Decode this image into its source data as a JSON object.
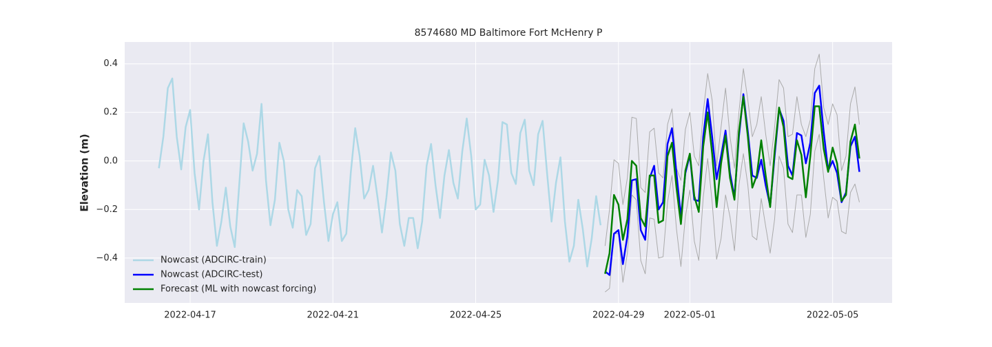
{
  "chart_data": {
    "type": "line",
    "title": "8574680 MD Baltimore Fort McHenry P",
    "y_label": "Elevation (m)",
    "x": [
      "2022-04-16T03:00",
      "2022-04-16T06:00",
      "2022-04-16T09:00",
      "2022-04-16T12:00",
      "2022-04-16T15:00",
      "2022-04-16T18:00",
      "2022-04-16T21:00",
      "2022-04-17T00:00",
      "2022-04-17T03:00",
      "2022-04-17T06:00",
      "2022-04-17T09:00",
      "2022-04-17T12:00",
      "2022-04-17T15:00",
      "2022-04-17T18:00",
      "2022-04-17T21:00",
      "2022-04-18T00:00",
      "2022-04-18T03:00",
      "2022-04-18T06:00",
      "2022-04-18T09:00",
      "2022-04-18T12:00",
      "2022-04-18T15:00",
      "2022-04-18T18:00",
      "2022-04-18T21:00",
      "2022-04-19T00:00",
      "2022-04-19T03:00",
      "2022-04-19T06:00",
      "2022-04-19T09:00",
      "2022-04-19T12:00",
      "2022-04-19T15:00",
      "2022-04-19T18:00",
      "2022-04-19T21:00",
      "2022-04-20T00:00",
      "2022-04-20T03:00",
      "2022-04-20T06:00",
      "2022-04-20T09:00",
      "2022-04-20T12:00",
      "2022-04-20T15:00",
      "2022-04-20T18:00",
      "2022-04-20T21:00",
      "2022-04-21T00:00",
      "2022-04-21T03:00",
      "2022-04-21T06:00",
      "2022-04-21T09:00",
      "2022-04-21T12:00",
      "2022-04-21T15:00",
      "2022-04-21T18:00",
      "2022-04-21T21:00",
      "2022-04-22T00:00",
      "2022-04-22T03:00",
      "2022-04-22T06:00",
      "2022-04-22T09:00",
      "2022-04-22T12:00",
      "2022-04-22T15:00",
      "2022-04-22T18:00",
      "2022-04-22T21:00",
      "2022-04-23T00:00",
      "2022-04-23T03:00",
      "2022-04-23T06:00",
      "2022-04-23T09:00",
      "2022-04-23T12:00",
      "2022-04-23T15:00",
      "2022-04-23T18:00",
      "2022-04-23T21:00",
      "2022-04-24T00:00",
      "2022-04-24T03:00",
      "2022-04-24T06:00",
      "2022-04-24T09:00",
      "2022-04-24T12:00",
      "2022-04-24T15:00",
      "2022-04-24T18:00",
      "2022-04-24T21:00",
      "2022-04-25T00:00",
      "2022-04-25T03:00",
      "2022-04-25T06:00",
      "2022-04-25T09:00",
      "2022-04-25T12:00",
      "2022-04-25T15:00",
      "2022-04-25T18:00",
      "2022-04-25T21:00",
      "2022-04-26T00:00",
      "2022-04-26T03:00",
      "2022-04-26T06:00",
      "2022-04-26T09:00",
      "2022-04-26T12:00",
      "2022-04-26T15:00",
      "2022-04-26T18:00",
      "2022-04-26T21:00",
      "2022-04-27T00:00",
      "2022-04-27T03:00",
      "2022-04-27T06:00",
      "2022-04-27T09:00",
      "2022-04-27T12:00",
      "2022-04-27T15:00",
      "2022-04-27T18:00",
      "2022-04-27T21:00",
      "2022-04-28T00:00",
      "2022-04-28T03:00",
      "2022-04-28T06:00",
      "2022-04-28T09:00",
      "2022-04-28T12:00",
      "2022-04-28T15:00",
      "2022-04-28T18:00",
      "2022-04-28T21:00",
      "2022-04-29T00:00",
      "2022-04-29T03:00",
      "2022-04-29T06:00",
      "2022-04-29T09:00",
      "2022-04-29T12:00",
      "2022-04-29T15:00",
      "2022-04-29T18:00",
      "2022-04-29T21:00",
      "2022-04-30T00:00",
      "2022-04-30T03:00",
      "2022-04-30T06:00",
      "2022-04-30T09:00",
      "2022-04-30T12:00",
      "2022-04-30T15:00",
      "2022-04-30T18:00",
      "2022-04-30T21:00",
      "2022-05-01T00:00",
      "2022-05-01T03:00",
      "2022-05-01T06:00",
      "2022-05-01T09:00",
      "2022-05-01T12:00",
      "2022-05-01T15:00",
      "2022-05-01T18:00",
      "2022-05-01T21:00",
      "2022-05-02T00:00",
      "2022-05-02T03:00",
      "2022-05-02T06:00",
      "2022-05-02T09:00",
      "2022-05-02T12:00",
      "2022-05-02T15:00",
      "2022-05-02T18:00",
      "2022-05-02T21:00",
      "2022-05-03T00:00",
      "2022-05-03T03:00",
      "2022-05-03T06:00",
      "2022-05-03T09:00",
      "2022-05-03T12:00",
      "2022-05-03T15:00",
      "2022-05-03T18:00",
      "2022-05-03T21:00",
      "2022-05-04T00:00",
      "2022-05-04T03:00",
      "2022-05-04T06:00",
      "2022-05-04T09:00",
      "2022-05-04T12:00",
      "2022-05-04T15:00",
      "2022-05-04T18:00",
      "2022-05-04T21:00",
      "2022-05-05T00:00",
      "2022-05-05T03:00",
      "2022-05-05T06:00",
      "2022-05-05T09:00",
      "2022-05-05T12:00",
      "2022-05-05T15:00",
      "2022-05-05T18:00"
    ],
    "series": [
      {
        "color": "#aaaaaa",
        "line_width": 1,
        "values": [
          null,
          null,
          null,
          null,
          null,
          null,
          null,
          null,
          null,
          null,
          null,
          null,
          null,
          null,
          null,
          null,
          null,
          null,
          null,
          null,
          null,
          null,
          null,
          null,
          null,
          null,
          null,
          null,
          null,
          null,
          null,
          null,
          null,
          null,
          null,
          null,
          null,
          null,
          null,
          null,
          null,
          null,
          null,
          null,
          null,
          null,
          null,
          null,
          null,
          null,
          null,
          null,
          null,
          null,
          null,
          null,
          null,
          null,
          null,
          null,
          null,
          null,
          null,
          null,
          null,
          null,
          null,
          null,
          null,
          null,
          null,
          null,
          null,
          null,
          null,
          null,
          null,
          null,
          null,
          null,
          null,
          null,
          null,
          null,
          null,
          null,
          null,
          null,
          null,
          null,
          null,
          null,
          null,
          null,
          null,
          null,
          null,
          null,
          null,
          null,
          -0.35,
          -0.2,
          0.005,
          -0.01,
          -0.18,
          -0.07,
          0.18,
          0.175,
          -0.11,
          -0.13,
          0.12,
          0.135,
          -0.05,
          -0.07,
          0.15,
          0.215,
          -0.03,
          -0.08,
          0.13,
          0.2,
          0.02,
          -0.02,
          0.2,
          0.36,
          0.25,
          -0.02,
          0.14,
          0.3,
          0.1,
          -0.03,
          0.2,
          0.38,
          0.25,
          0.1,
          0.15,
          0.265,
          0.11,
          -0.02,
          0.14,
          0.335,
          0.3,
          0.1,
          0.11,
          0.265,
          0.15,
          0.1,
          0.17,
          0.38,
          0.44,
          0.22,
          0.15,
          0.235,
          0.19,
          -0.04,
          0.02,
          0.235,
          0.305,
          0.15
        ]
      },
      {
        "color": "#aaaaaa",
        "line_width": 1,
        "values": [
          null,
          null,
          null,
          null,
          null,
          null,
          null,
          null,
          null,
          null,
          null,
          null,
          null,
          null,
          null,
          null,
          null,
          null,
          null,
          null,
          null,
          null,
          null,
          null,
          null,
          null,
          null,
          null,
          null,
          null,
          null,
          null,
          null,
          null,
          null,
          null,
          null,
          null,
          null,
          null,
          null,
          null,
          null,
          null,
          null,
          null,
          null,
          null,
          null,
          null,
          null,
          null,
          null,
          null,
          null,
          null,
          null,
          null,
          null,
          null,
          null,
          null,
          null,
          null,
          null,
          null,
          null,
          null,
          null,
          null,
          null,
          null,
          null,
          null,
          null,
          null,
          null,
          null,
          null,
          null,
          null,
          null,
          null,
          null,
          null,
          null,
          null,
          null,
          null,
          null,
          null,
          null,
          null,
          null,
          null,
          null,
          null,
          null,
          null,
          null,
          -0.54,
          -0.525,
          -0.3,
          -0.3,
          -0.5,
          -0.38,
          -0.14,
          -0.16,
          -0.41,
          -0.465,
          -0.235,
          -0.24,
          -0.4,
          -0.395,
          -0.17,
          -0.06,
          -0.28,
          -0.435,
          -0.23,
          -0.12,
          -0.33,
          -0.41,
          -0.15,
          0.01,
          -0.17,
          -0.405,
          -0.32,
          -0.14,
          -0.23,
          -0.37,
          -0.1,
          0.03,
          -0.1,
          -0.31,
          -0.325,
          -0.155,
          -0.27,
          -0.38,
          -0.24,
          0.02,
          -0.03,
          -0.26,
          -0.295,
          -0.14,
          -0.14,
          -0.315,
          -0.22,
          0.04,
          0.11,
          -0.07,
          -0.235,
          -0.15,
          -0.165,
          -0.29,
          -0.3,
          -0.13,
          -0.095,
          -0.17
        ]
      },
      {
        "name": "Nowcast (ADCIRC-train)",
        "color": "#add8e6",
        "line_width": 2.5,
        "values": [
          -0.03,
          0.1,
          0.3,
          0.34,
          0.1,
          -0.035,
          0.14,
          0.21,
          -0.05,
          -0.2,
          0.0,
          0.11,
          -0.17,
          -0.35,
          -0.25,
          -0.11,
          -0.27,
          -0.355,
          -0.1,
          0.155,
          0.08,
          -0.04,
          0.03,
          0.235,
          -0.08,
          -0.265,
          -0.16,
          0.075,
          0.0,
          -0.2,
          -0.275,
          -0.12,
          -0.145,
          -0.305,
          -0.26,
          -0.03,
          0.02,
          -0.17,
          -0.33,
          -0.22,
          -0.17,
          -0.33,
          -0.3,
          -0.05,
          0.135,
          0.02,
          -0.155,
          -0.12,
          -0.02,
          -0.15,
          -0.295,
          -0.15,
          0.035,
          -0.04,
          -0.26,
          -0.35,
          -0.235,
          -0.235,
          -0.36,
          -0.25,
          -0.02,
          0.07,
          -0.1,
          -0.235,
          -0.06,
          0.045,
          -0.09,
          -0.155,
          0.04,
          0.175,
          0.02,
          -0.2,
          -0.18,
          0.005,
          -0.06,
          -0.21,
          -0.08,
          0.16,
          0.15,
          -0.05,
          -0.095,
          0.115,
          0.17,
          -0.04,
          -0.1,
          0.11,
          0.165,
          -0.05,
          -0.25,
          -0.09,
          0.015,
          -0.25,
          -0.415,
          -0.35,
          -0.16,
          -0.28,
          -0.435,
          -0.32,
          -0.145,
          -0.265,
          null,
          null,
          null,
          null,
          null,
          null,
          null,
          null,
          null,
          null,
          null,
          null,
          null,
          null,
          null,
          null,
          null,
          null,
          null,
          null,
          null,
          null,
          null,
          null,
          null,
          null,
          null,
          null,
          null,
          null,
          null,
          null,
          null,
          null,
          null,
          null,
          null,
          null,
          null,
          null,
          null,
          null,
          null,
          null,
          null,
          null,
          null,
          null,
          null,
          null,
          null,
          null,
          null,
          null,
          null,
          null,
          null,
          null
        ]
      },
      {
        "name": "Nowcast (ADCIRC-test)",
        "color": "#0000ff",
        "line_width": 2.5,
        "values": [
          null,
          null,
          null,
          null,
          null,
          null,
          null,
          null,
          null,
          null,
          null,
          null,
          null,
          null,
          null,
          null,
          null,
          null,
          null,
          null,
          null,
          null,
          null,
          null,
          null,
          null,
          null,
          null,
          null,
          null,
          null,
          null,
          null,
          null,
          null,
          null,
          null,
          null,
          null,
          null,
          null,
          null,
          null,
          null,
          null,
          null,
          null,
          null,
          null,
          null,
          null,
          null,
          null,
          null,
          null,
          null,
          null,
          null,
          null,
          null,
          null,
          null,
          null,
          null,
          null,
          null,
          null,
          null,
          null,
          null,
          null,
          null,
          null,
          null,
          null,
          null,
          null,
          null,
          null,
          null,
          null,
          null,
          null,
          null,
          null,
          null,
          null,
          null,
          null,
          null,
          null,
          null,
          null,
          null,
          null,
          null,
          null,
          null,
          null,
          null,
          -0.455,
          -0.47,
          -0.3,
          -0.285,
          -0.425,
          -0.31,
          -0.08,
          -0.075,
          -0.285,
          -0.325,
          -0.07,
          -0.02,
          -0.2,
          -0.17,
          0.07,
          0.135,
          -0.05,
          -0.23,
          -0.05,
          0.025,
          -0.16,
          -0.165,
          0.1,
          0.255,
          0.1,
          -0.075,
          0.02,
          0.125,
          -0.05,
          -0.15,
          0.1,
          0.275,
          0.12,
          -0.06,
          -0.07,
          0.005,
          -0.1,
          -0.185,
          0.02,
          0.215,
          0.165,
          -0.02,
          -0.06,
          0.115,
          0.105,
          -0.01,
          0.075,
          0.28,
          0.31,
          0.12,
          -0.04,
          0.0,
          -0.05,
          -0.17,
          -0.13,
          0.06,
          0.1,
          -0.045
        ]
      },
      {
        "name": "Forecast (ML with nowcast forcing)",
        "color": "#008000",
        "line_width": 2.5,
        "values": [
          null,
          null,
          null,
          null,
          null,
          null,
          null,
          null,
          null,
          null,
          null,
          null,
          null,
          null,
          null,
          null,
          null,
          null,
          null,
          null,
          null,
          null,
          null,
          null,
          null,
          null,
          null,
          null,
          null,
          null,
          null,
          null,
          null,
          null,
          null,
          null,
          null,
          null,
          null,
          null,
          null,
          null,
          null,
          null,
          null,
          null,
          null,
          null,
          null,
          null,
          null,
          null,
          null,
          null,
          null,
          null,
          null,
          null,
          null,
          null,
          null,
          null,
          null,
          null,
          null,
          null,
          null,
          null,
          null,
          null,
          null,
          null,
          null,
          null,
          null,
          null,
          null,
          null,
          null,
          null,
          null,
          null,
          null,
          null,
          null,
          null,
          null,
          null,
          null,
          null,
          null,
          null,
          null,
          null,
          null,
          null,
          null,
          null,
          null,
          null,
          -0.465,
          -0.38,
          -0.14,
          -0.18,
          -0.325,
          -0.24,
          0.0,
          -0.02,
          -0.235,
          -0.27,
          -0.06,
          -0.06,
          -0.255,
          -0.245,
          0.02,
          0.075,
          -0.11,
          -0.26,
          -0.04,
          0.03,
          -0.145,
          -0.21,
          0.06,
          0.2,
          0.03,
          -0.19,
          -0.01,
          0.105,
          -0.07,
          -0.16,
          0.12,
          0.265,
          0.1,
          -0.11,
          -0.06,
          0.085,
          -0.06,
          -0.19,
          0.04,
          0.22,
          0.14,
          -0.065,
          -0.075,
          0.085,
          0.025,
          -0.15,
          0.02,
          0.225,
          0.225,
          0.05,
          -0.045,
          0.055,
          -0.01,
          -0.165,
          -0.14,
          0.08,
          0.15,
          0.01
        ]
      }
    ],
    "xlim": [
      "2022-04-15T04:00",
      "2022-05-06T16:00"
    ],
    "xticks": [
      "2022-04-17",
      "2022-04-21",
      "2022-04-25",
      "2022-04-29",
      "2022-05-01",
      "2022-05-05"
    ],
    "ylim": [
      -0.585,
      0.49
    ],
    "yticks": [
      {
        "value": -0.4,
        "label": "−0.4"
      },
      {
        "value": -0.2,
        "label": "−0.2"
      },
      {
        "value": 0,
        "label": "0.0"
      },
      0.2,
      0.4
    ],
    "grid": true,
    "legend": "lower left",
    "background": "#eaeaf2"
  }
}
